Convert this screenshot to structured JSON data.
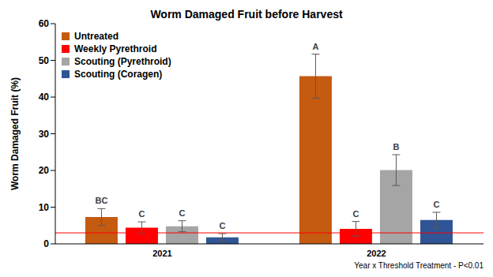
{
  "chart_data": {
    "type": "bar",
    "title": "Worm Damaged Fruit before Harvest",
    "y_label": "Worm Damaged Fruit (%)",
    "categories": [
      "2021",
      "2022"
    ],
    "series": [
      {
        "name": "Untreated",
        "color": "#C55A11",
        "values": [
          7.3,
          45.7
        ],
        "errors": [
          2.3,
          6.0
        ],
        "letters": [
          "BC",
          "A"
        ]
      },
      {
        "name": "Weekly Pyrethroid",
        "color": "#FF0000",
        "values": [
          4.4,
          4.1
        ],
        "errors": [
          1.6,
          2.0
        ],
        "letters": [
          "C",
          "C"
        ]
      },
      {
        "name": "Scouting (Pyrethroid)",
        "color": "#A5A5A5",
        "values": [
          4.8,
          20.1
        ],
        "errors": [
          1.5,
          4.2
        ],
        "letters": [
          "C",
          "B"
        ]
      },
      {
        "name": "Scouting (Coragen)",
        "color": "#2F5597",
        "values": [
          1.8,
          6.5
        ],
        "errors": [
          1.0,
          2.1
        ],
        "letters": [
          "C",
          "C"
        ]
      }
    ],
    "ylim": [
      0,
      60
    ],
    "yticks": [
      0,
      10,
      20,
      30,
      40,
      50,
      60
    ],
    "grid": false,
    "legend": "top-left",
    "reference_line": {
      "value": 3,
      "color": "#FF0000"
    },
    "note": "Year x Threshold Treatment - P<0.01"
  }
}
